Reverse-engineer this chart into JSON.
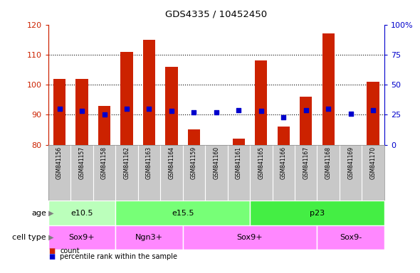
{
  "title": "GDS4335 / 10452450",
  "samples": [
    "GSM841156",
    "GSM841157",
    "GSM841158",
    "GSM841162",
    "GSM841163",
    "GSM841164",
    "GSM841159",
    "GSM841160",
    "GSM841161",
    "GSM841165",
    "GSM841166",
    "GSM841167",
    "GSM841168",
    "GSM841169",
    "GSM841170"
  ],
  "bar_heights": [
    102,
    102,
    93,
    111,
    115,
    106,
    85,
    80,
    82,
    108,
    86,
    96,
    117,
    80,
    101
  ],
  "bar_base": 80,
  "percentile_ranks": [
    30,
    28,
    25,
    30,
    30,
    28,
    27,
    27,
    29,
    28,
    23,
    29,
    30,
    26,
    29
  ],
  "ylim_left": [
    80,
    120
  ],
  "ylim_right": [
    0,
    100
  ],
  "yticks_left": [
    80,
    90,
    100,
    110,
    120
  ],
  "yticks_right": [
    0,
    25,
    50,
    75,
    100
  ],
  "yticklabels_right": [
    "0",
    "25",
    "50",
    "75",
    "100%"
  ],
  "bar_color": "#CC2200",
  "dot_color": "#0000CC",
  "age_groups": [
    {
      "label": "e10.5",
      "start": 0,
      "end": 3,
      "color": "#BBFFBB"
    },
    {
      "label": "e15.5",
      "start": 3,
      "end": 9,
      "color": "#77FF77"
    },
    {
      "label": "p23",
      "start": 9,
      "end": 15,
      "color": "#44EE44"
    }
  ],
  "cell_type_groups": [
    {
      "label": "Sox9+",
      "start": 0,
      "end": 3
    },
    {
      "label": "Ngn3+",
      "start": 3,
      "end": 6
    },
    {
      "label": "Sox9+",
      "start": 6,
      "end": 12
    },
    {
      "label": "Sox9-",
      "start": 12,
      "end": 15
    }
  ],
  "cell_color": "#FF88FF",
  "age_label": "age",
  "cell_type_label": "cell type",
  "legend_count_label": "count",
  "legend_percentile_label": "percentile rank within the sample",
  "plot_bg": "#FFFFFF",
  "label_area_bg": "#C8C8C8",
  "fig_bg": "#FFFFFF"
}
